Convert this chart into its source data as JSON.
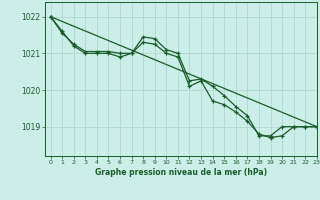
{
  "title": "Graphe pression niveau de la mer (hPa)",
  "bg_color": "#cceee8",
  "grid_color": "#aad4cc",
  "line_color": "#1a5c2a",
  "xlim": [
    -0.5,
    23
  ],
  "ylim": [
    1018.2,
    1022.4
  ],
  "yticks": [
    1019,
    1020,
    1021,
    1022
  ],
  "xticks": [
    0,
    1,
    2,
    3,
    4,
    5,
    6,
    7,
    8,
    9,
    10,
    11,
    12,
    13,
    14,
    15,
    16,
    17,
    18,
    19,
    20,
    21,
    22,
    23
  ],
  "line1_x": [
    0,
    23
  ],
  "line1_y": [
    1022.0,
    1019.0
  ],
  "line2_x": [
    0,
    1,
    2,
    3,
    4,
    5,
    6,
    7,
    8,
    9,
    10,
    11,
    12,
    13,
    14,
    15,
    16,
    17,
    18,
    19,
    20,
    21,
    22,
    23
  ],
  "line2_y": [
    1022.0,
    1021.55,
    1021.25,
    1021.05,
    1021.05,
    1021.05,
    1021.0,
    1021.0,
    1021.45,
    1021.4,
    1021.1,
    1021.0,
    1020.25,
    1020.3,
    1020.1,
    1019.85,
    1019.55,
    1019.3,
    1018.75,
    1018.75,
    1019.0,
    1019.0,
    1019.0,
    1019.0
  ],
  "line3_x": [
    0,
    1,
    2,
    3,
    4,
    5,
    6,
    7,
    8,
    9,
    10,
    11,
    12,
    13,
    14,
    15,
    16,
    17,
    18,
    19,
    20,
    21,
    22,
    23
  ],
  "line3_y": [
    1022.0,
    1021.6,
    1021.2,
    1021.0,
    1021.0,
    1021.0,
    1020.9,
    1021.0,
    1021.3,
    1021.25,
    1021.0,
    1020.9,
    1020.1,
    1020.25,
    1019.7,
    1019.6,
    1019.4,
    1019.15,
    1018.8,
    1018.7,
    1018.75,
    1019.0,
    1019.0,
    1019.0
  ]
}
